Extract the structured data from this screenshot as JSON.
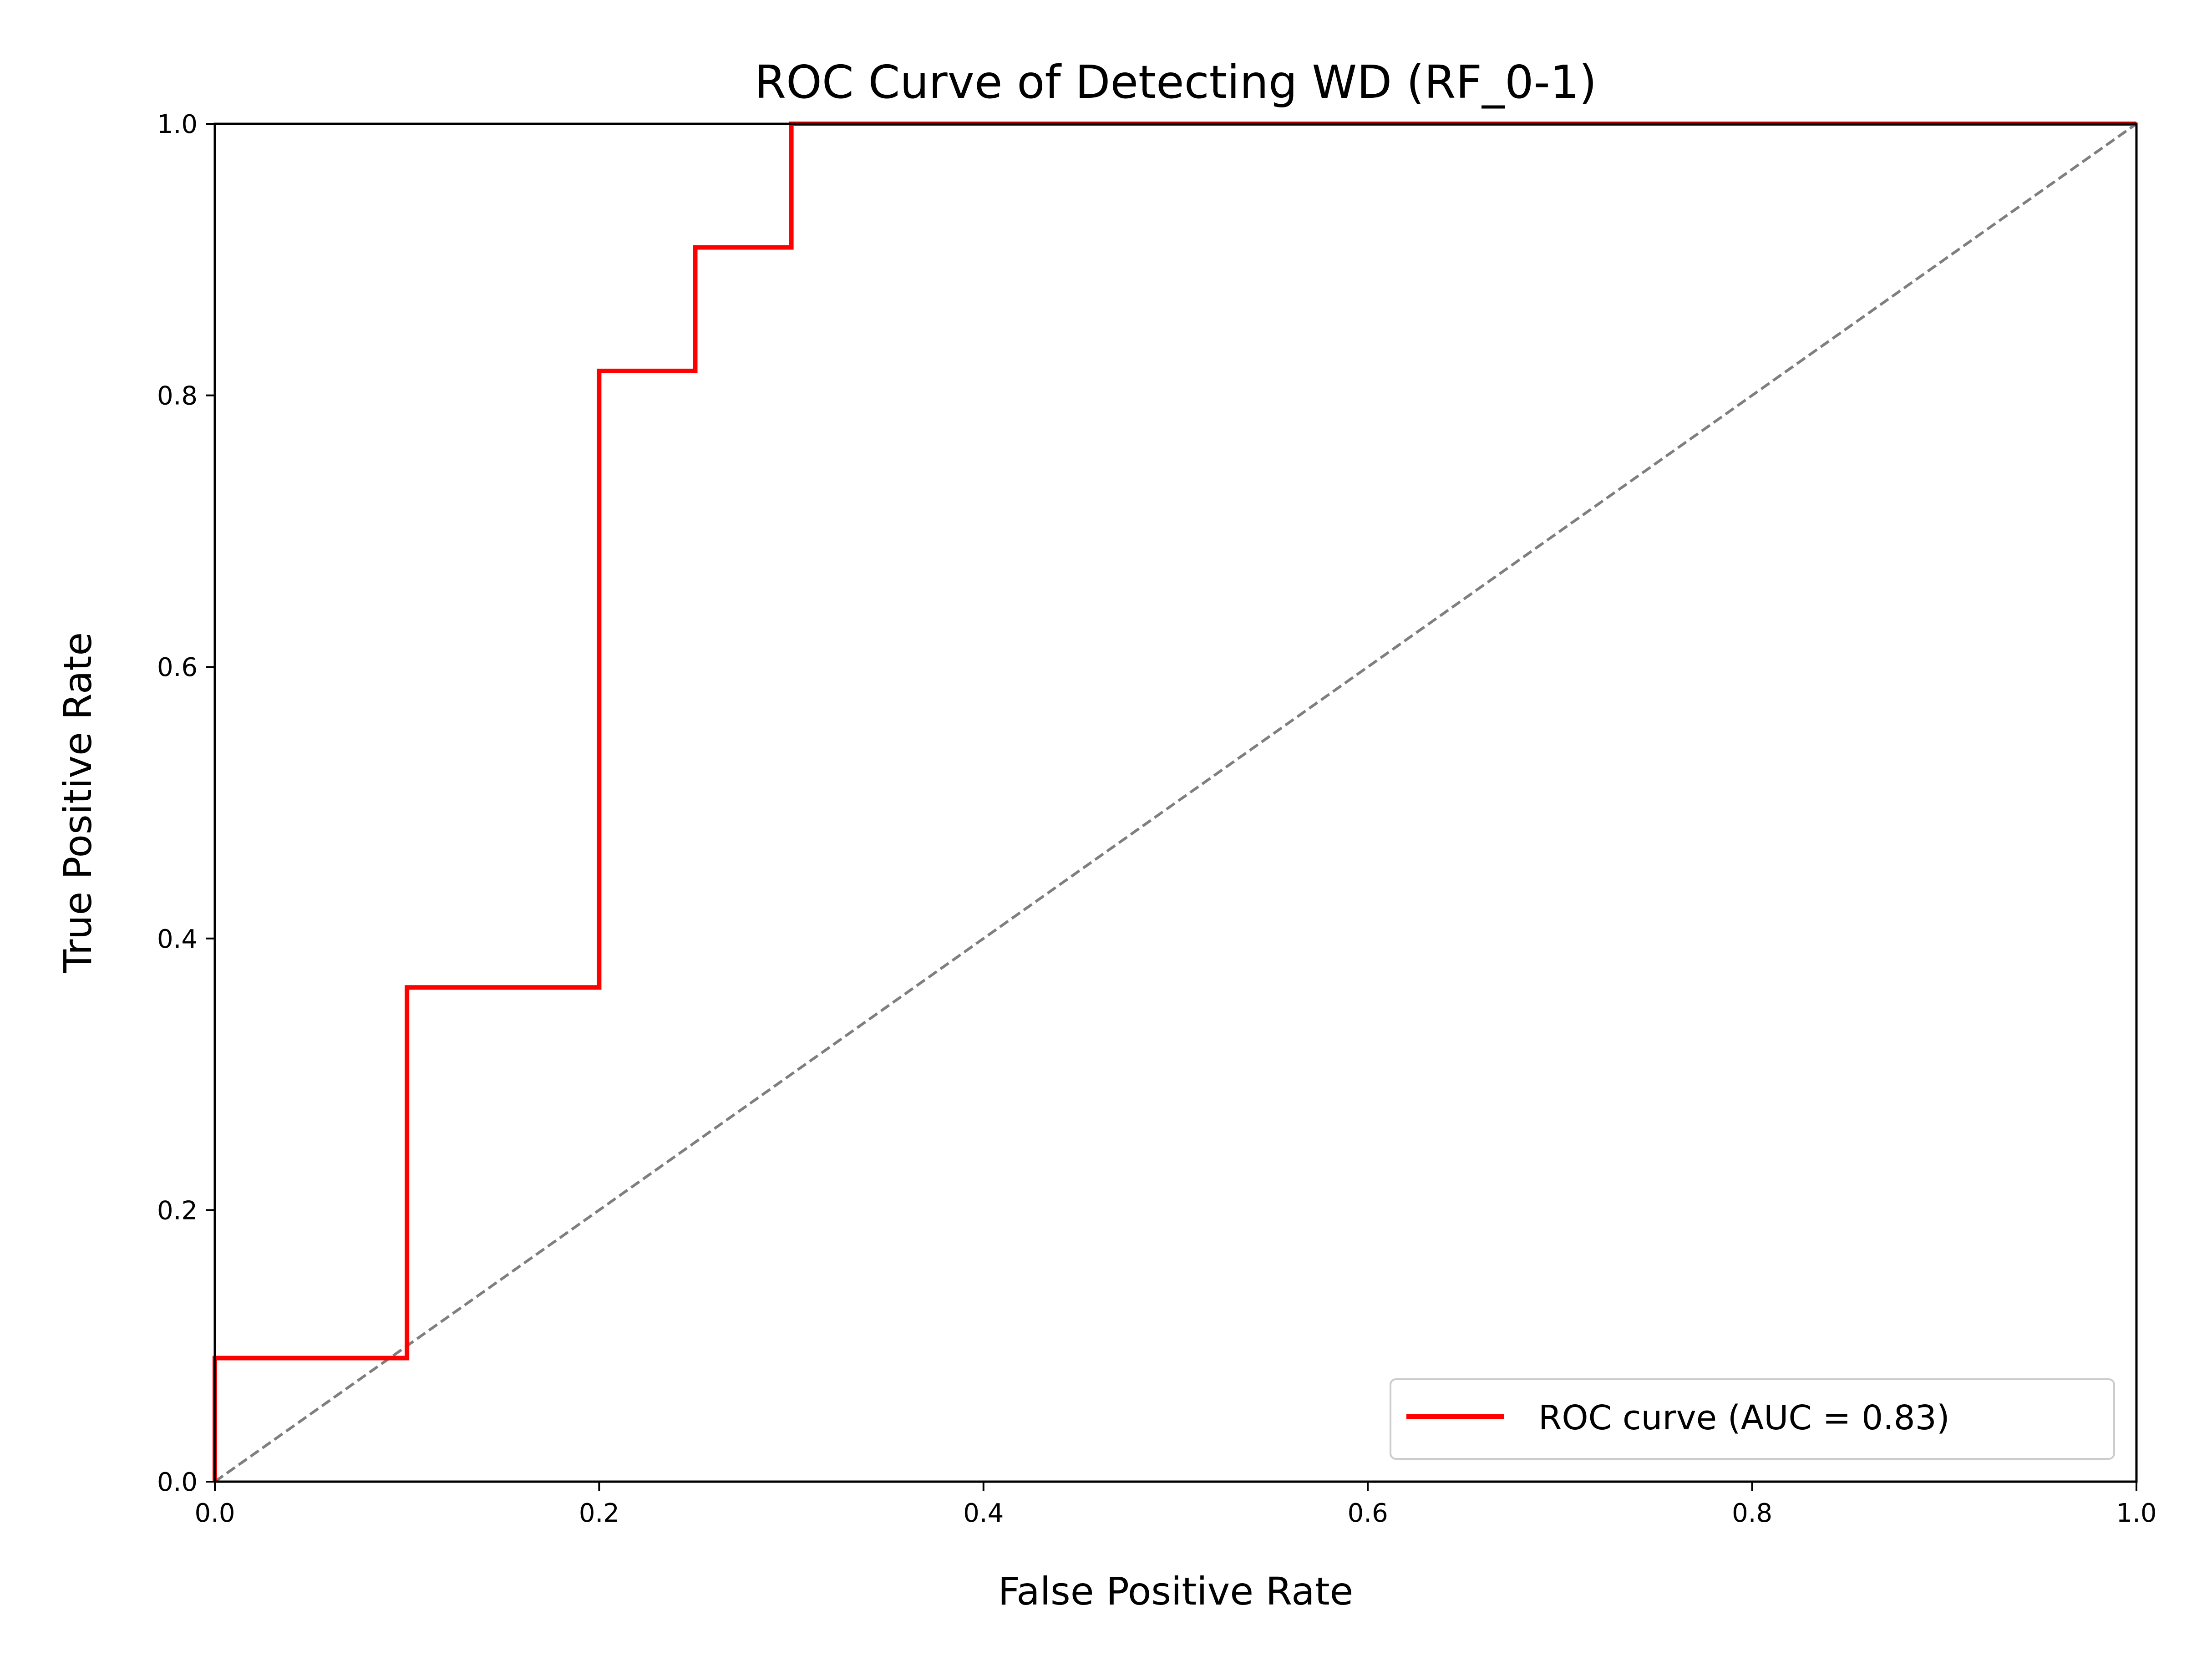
{
  "chart_data": {
    "type": "line",
    "title": "ROC Curve of Detecting WD (RF_0-1)",
    "xlabel": "False Positive Rate",
    "ylabel": "True Positive Rate",
    "xlim": [
      0,
      1
    ],
    "ylim": [
      0,
      1
    ],
    "xticks": [
      "0.0",
      "0.2",
      "0.4",
      "0.6",
      "0.8",
      "1.0"
    ],
    "yticks": [
      "0.0",
      "0.2",
      "0.4",
      "0.6",
      "0.8",
      "1.0"
    ],
    "grid": false,
    "legend_position": "lower-right",
    "series": [
      {
        "name": "ROC curve (AUC = 0.83)",
        "color": "#ff0000",
        "style": "step",
        "x": [
          0.0,
          0.0,
          0.1,
          0.1,
          0.2,
          0.2,
          0.25,
          0.25,
          0.3,
          0.3,
          1.0
        ],
        "y": [
          0.0,
          0.091,
          0.091,
          0.364,
          0.364,
          0.818,
          0.818,
          0.909,
          0.909,
          1.0,
          1.0
        ]
      },
      {
        "color": "#7f7f7f",
        "style": "dashed",
        "x": [
          0.0,
          1.0
        ],
        "y": [
          0.0,
          1.0
        ]
      }
    ]
  }
}
